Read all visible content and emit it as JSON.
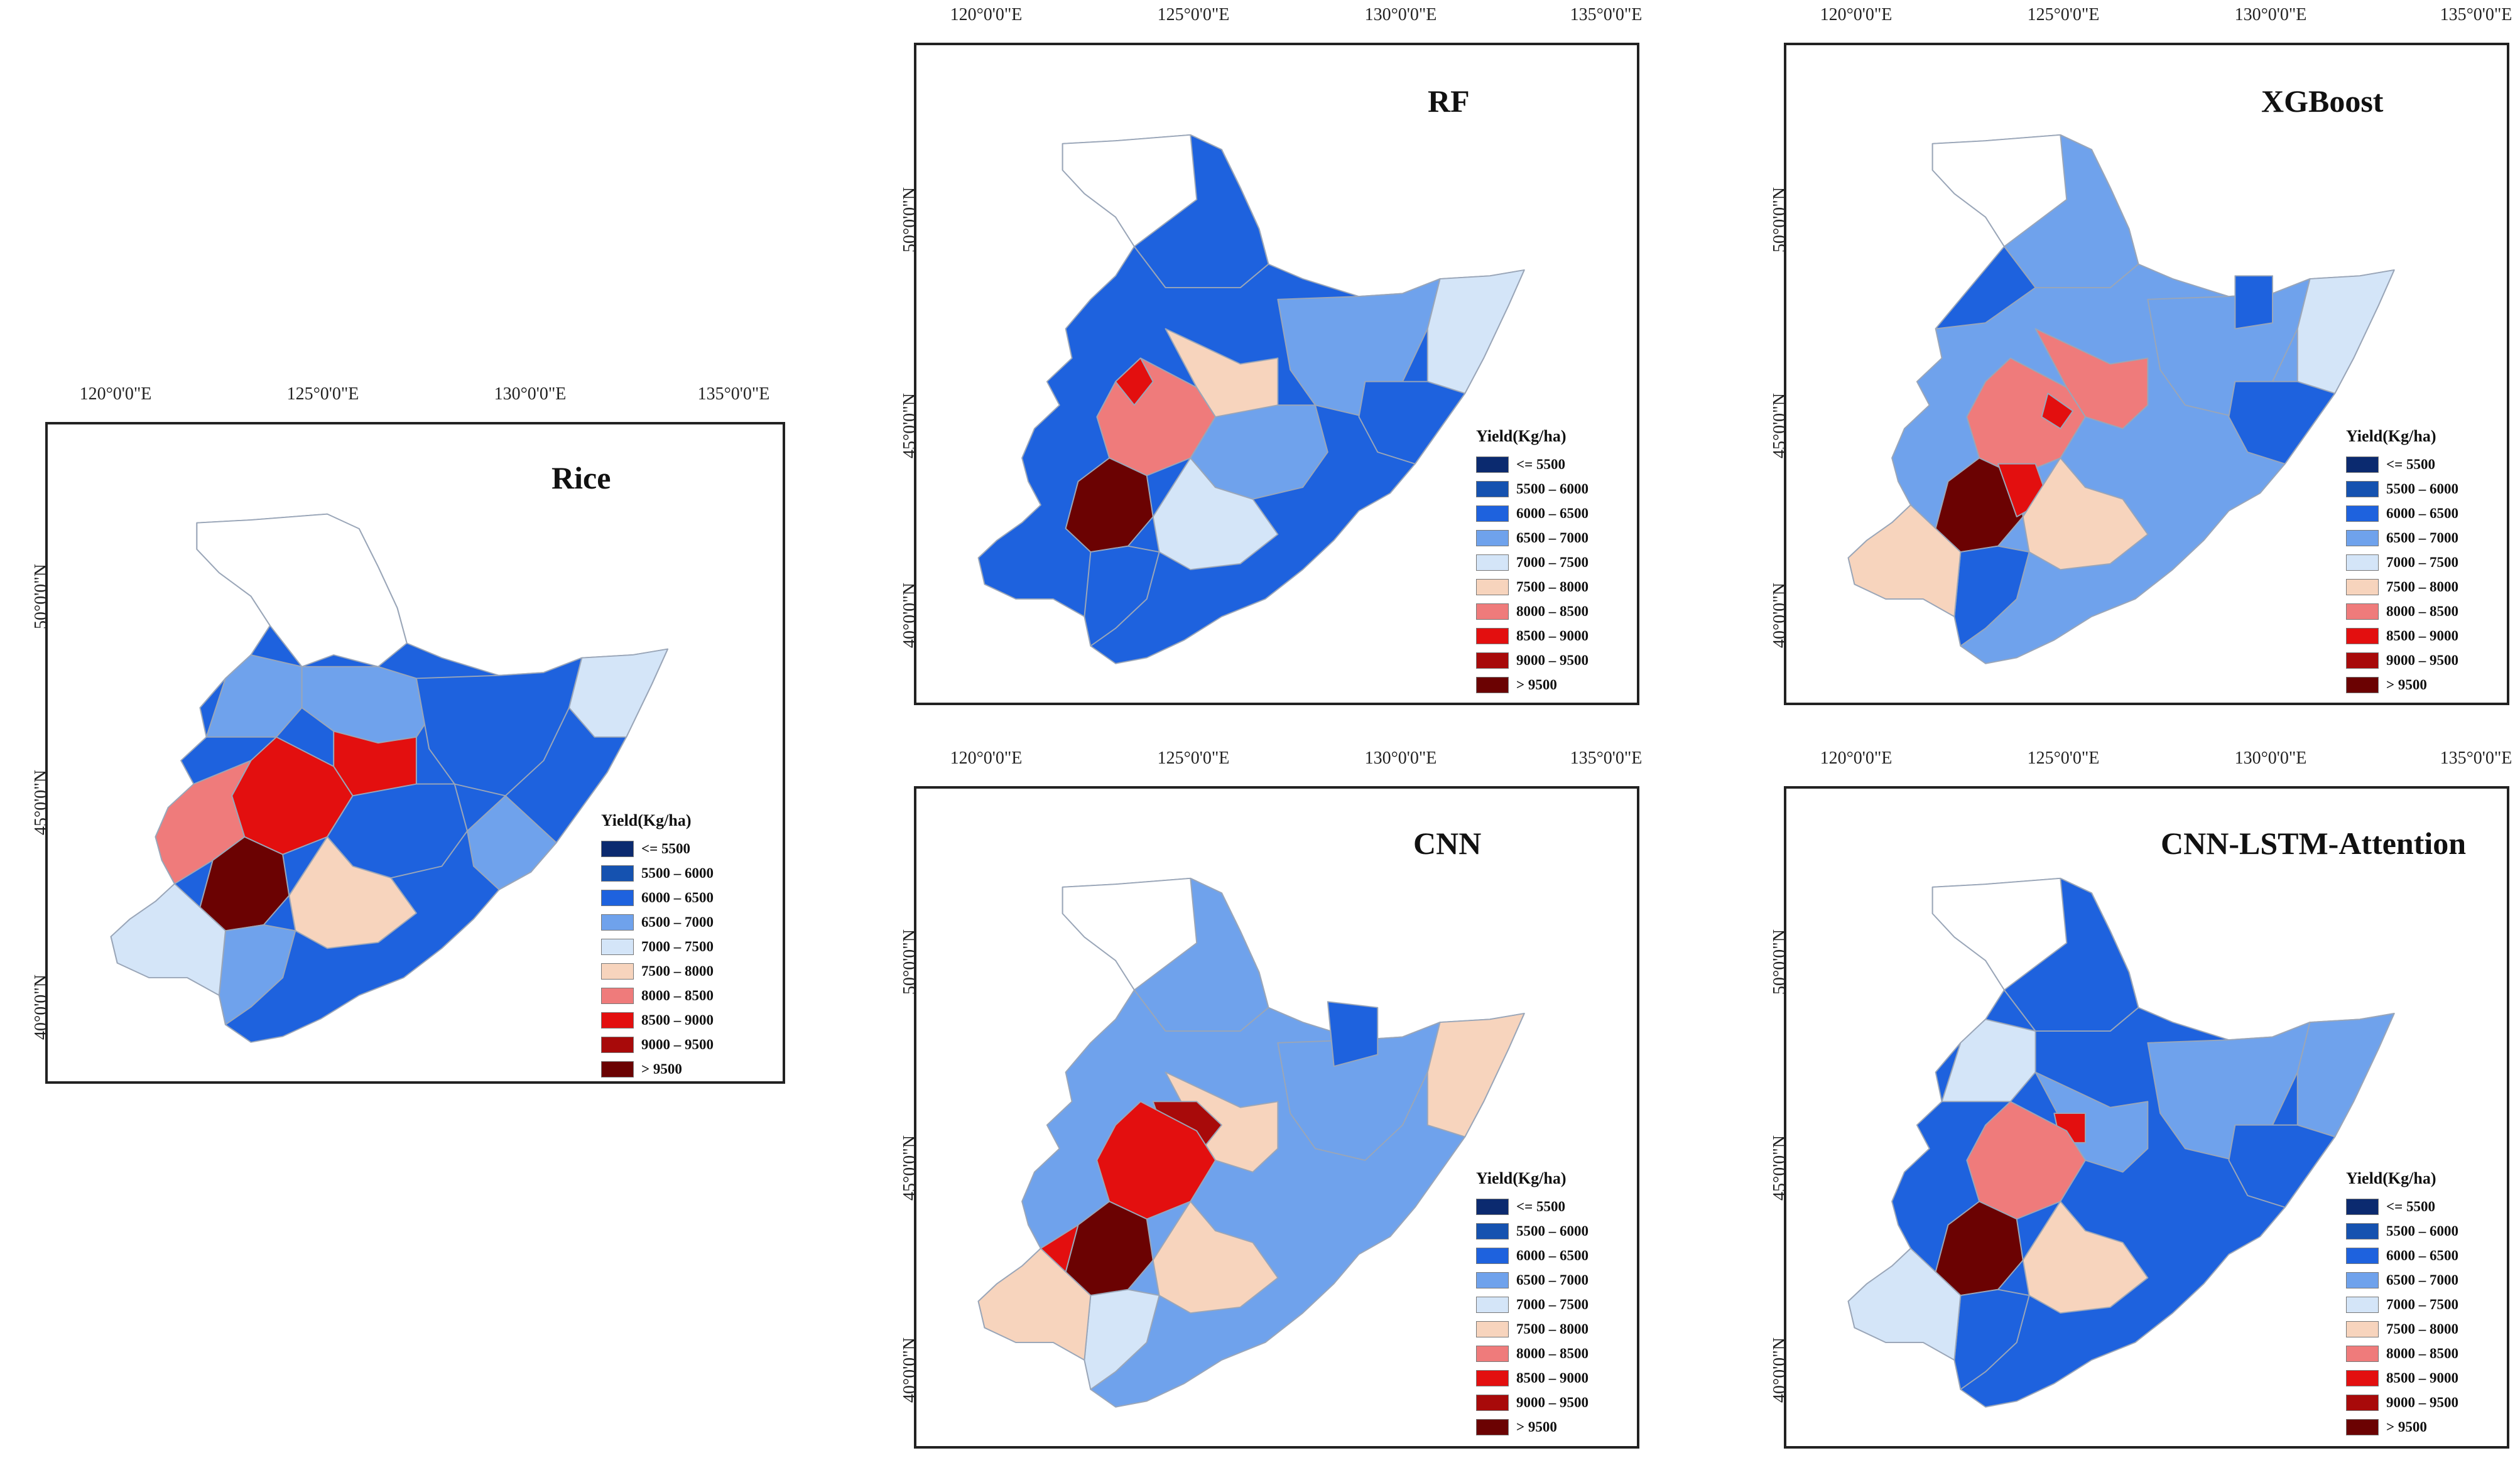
{
  "x_ticks": [
    "120°0'0\"E",
    "125°0'0\"E",
    "130°0'0\"E",
    "135°0'0\"E"
  ],
  "y_ticks": [
    "50°0'0\"N",
    "45°0'0\"N",
    "40°0'0\"N"
  ],
  "legend": {
    "title": "Yield(Kg/ha)",
    "classes": [
      {
        "label": "<= 5500",
        "color": "#0b2a6f"
      },
      {
        "label": "5500 – 6000",
        "color": "#1552b0"
      },
      {
        "label": "6000 – 6500",
        "color": "#1e62de"
      },
      {
        "label": "6500 – 7000",
        "color": "#6fa2ec"
      },
      {
        "label": "7000 – 7500",
        "color": "#d4e5f8"
      },
      {
        "label": "7500 – 8000",
        "color": "#f7d4bd"
      },
      {
        "label": "8000 – 8500",
        "color": "#ef7b7b"
      },
      {
        "label": "8500 – 9000",
        "color": "#e30f0f"
      },
      {
        "label": "9000 – 9500",
        "color": "#a80a0a"
      },
      {
        "label": "> 9500",
        "color": "#6b0202"
      }
    ]
  },
  "panels": [
    {
      "id": "rice",
      "title": "Rice",
      "dominant_class": "6000 – 6500"
    },
    {
      "id": "rf",
      "title": "RF",
      "dominant_class": "6000 – 6500"
    },
    {
      "id": "xgboost",
      "title": "XGBoost",
      "dominant_class": "6500 – 7000"
    },
    {
      "id": "cnn",
      "title": "CNN",
      "dominant_class": "6500 – 7000"
    },
    {
      "id": "cnn-lstm-attention",
      "title": "CNN-LSTM-Attention",
      "dominant_class": "6000 – 6500"
    }
  ]
}
